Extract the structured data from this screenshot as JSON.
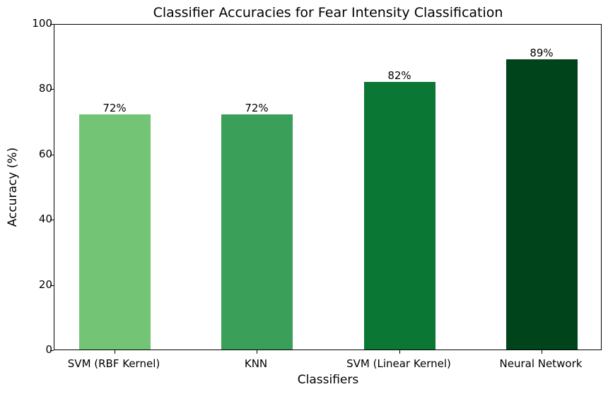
{
  "chart_data": {
    "type": "bar",
    "title": "Classifier Accuracies for Fear Intensity Classification",
    "xlabel": "Classifiers",
    "ylabel": "Accuracy (%)",
    "ylim": [
      0,
      100
    ],
    "yticks": [
      "0",
      "20",
      "40",
      "60",
      "80",
      "100"
    ],
    "grid": false,
    "legend": null,
    "categories": [
      "SVM (RBF Kernel)",
      "KNN",
      "SVM (Linear Kernel)",
      "Neural Network"
    ],
    "values": [
      72,
      72,
      82,
      89
    ],
    "value_labels": [
      "72%",
      "72%",
      "82%",
      "89%"
    ],
    "colors": [
      "#74c476",
      "#3a9f59",
      "#0b7734",
      "#00441b"
    ]
  }
}
